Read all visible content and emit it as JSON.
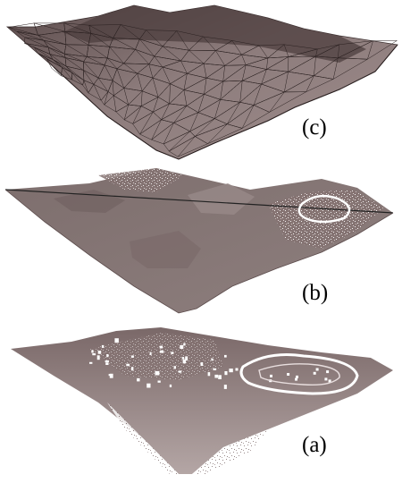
{
  "figure": {
    "panels": [
      {
        "id": "c",
        "label": "(c)"
      },
      {
        "id": "b",
        "label": "(b)"
      },
      {
        "id": "a",
        "label": "(a)"
      }
    ]
  },
  "colors": {
    "surface": "#8a7b79",
    "surface_light": "#a8999a",
    "surface_dark": "#4a3e3e",
    "mesh_line": "#2a2020",
    "points": "#6e5d5d",
    "background": "#ffffff"
  }
}
